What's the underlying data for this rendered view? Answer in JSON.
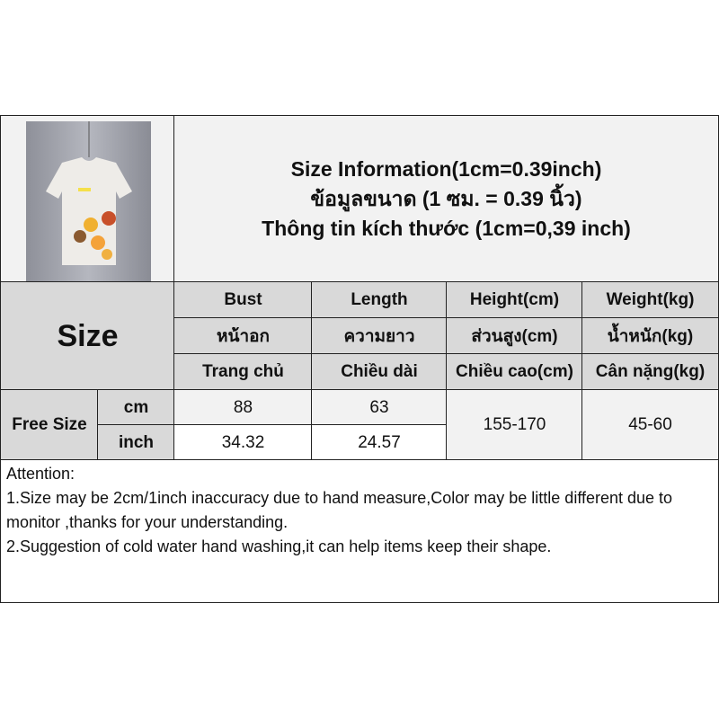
{
  "title": {
    "line1": "Size Information(1cm=0.39inch)",
    "line2": "ข้อมูลขนาด (1 ซม. = 0.39 นิ้ว)",
    "line3": "Thông tin kích thước (1cm=0,39 inch)"
  },
  "size_label": "Size",
  "headers": [
    {
      "en": "Bust",
      "th": "หน้าอก",
      "vi": "Trang chủ"
    },
    {
      "en": "Length",
      "th": "ความยาว",
      "vi": "Chiều dài"
    },
    {
      "en": "Height(cm)",
      "th": "ส่วนสูง(cm)",
      "vi": "Chiều cao(cm)"
    },
    {
      "en": "Weight(kg)",
      "th": "น้ำหนัก(kg)",
      "vi": "Cân nặng(kg)"
    }
  ],
  "row": {
    "size": "Free Size",
    "unit_cm": "cm",
    "unit_inch": "inch",
    "bust_cm": "88",
    "length_cm": "63",
    "bust_inch": "34.32",
    "length_inch": "24.57",
    "height": "155-170",
    "weight": "45-60"
  },
  "attention": {
    "title": "Attention:",
    "line1": "1.Size may be 2cm/1inch inaccuracy due to hand measure,Color may be little different due to monitor ,thanks for your understanding.",
    "line2": "2.Suggestion of cold water hand washing,it can help items keep their shape."
  }
}
